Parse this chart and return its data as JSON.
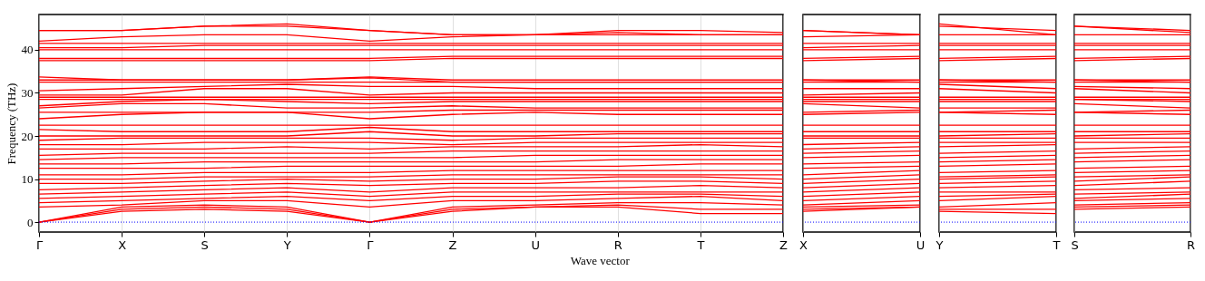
{
  "chart_data": [
    {
      "type": "line",
      "ylabel": "Frequency (THz)",
      "xlabel": "Wave vector",
      "grid": "x",
      "ylim": [
        -2.3,
        48.2
      ],
      "yticks": [
        0,
        10,
        20,
        30,
        40
      ],
      "categories": [
        "Γ",
        "X",
        "S",
        "Y",
        "Γ",
        "Z",
        "U",
        "R",
        "T",
        "Z"
      ],
      "ref_lines": [
        {
          "axis": "y",
          "value": 0,
          "color": "#0000ff",
          "line_style": "dotted"
        }
      ],
      "series": [
        {
          "color": "#ff0000",
          "values": [
            0,
            2.5,
            3,
            2.5,
            0,
            3,
            3.5,
            3.5,
            2,
            2
          ]
        },
        {
          "color": "#ff0000",
          "values": [
            0,
            3,
            3.5,
            3,
            0,
            2.5,
            3.5,
            4,
            3,
            3
          ]
        },
        {
          "color": "#ff0000",
          "values": [
            0,
            3.5,
            4,
            3.5,
            0,
            3.5,
            4,
            4.5,
            4.5,
            4
          ]
        },
        {
          "color": "#ff0000",
          "values": [
            3.5,
            4,
            5,
            5,
            3.5,
            5,
            5,
            5.5,
            6,
            5
          ]
        },
        {
          "color": "#ff0000",
          "values": [
            4.5,
            5,
            5.5,
            6,
            5,
            6,
            6,
            6.5,
            6.5,
            6
          ]
        },
        {
          "color": "#ff0000",
          "values": [
            5.5,
            6,
            6.5,
            7,
            6,
            7,
            7,
            7,
            7,
            7
          ]
        },
        {
          "color": "#ff0000",
          "values": [
            6.5,
            7,
            7.5,
            8,
            7,
            8,
            8,
            8,
            8.5,
            8
          ]
        },
        {
          "color": "#ff0000",
          "values": [
            7.5,
            8,
            8.5,
            9,
            8.5,
            9,
            9,
            9.5,
            9.5,
            9
          ]
        },
        {
          "color": "#ff0000",
          "values": [
            9,
            9,
            9.5,
            10,
            9.5,
            10,
            10,
            10.5,
            10.5,
            10
          ]
        },
        {
          "color": "#ff0000",
          "values": [
            10,
            10,
            10.5,
            10.5,
            10.5,
            11,
            11,
            11,
            11,
            11
          ]
        },
        {
          "color": "#ff0000",
          "values": [
            11,
            11,
            11.5,
            11.5,
            11.5,
            12,
            12,
            12,
            12,
            12
          ]
        },
        {
          "color": "#ff0000",
          "values": [
            12.5,
            12.5,
            12.5,
            13,
            13,
            13,
            13,
            13,
            13.5,
            13.5
          ]
        },
        {
          "color": "#ff0000",
          "values": [
            13.5,
            13.5,
            14,
            14,
            14,
            14,
            14,
            14.5,
            14.5,
            14.5
          ]
        },
        {
          "color": "#ff0000",
          "values": [
            14.5,
            15,
            15,
            15,
            15,
            15,
            15.5,
            15.5,
            15.5,
            15.5
          ]
        },
        {
          "color": "#ff0000",
          "values": [
            15.5,
            16,
            16,
            16,
            16,
            16.5,
            16.5,
            16.5,
            16.5,
            16.5
          ]
        },
        {
          "color": "#ff0000",
          "values": [
            17,
            17,
            17,
            17.5,
            17,
            17.5,
            17.5,
            17.5,
            18,
            17.5
          ]
        },
        {
          "color": "#ff0000",
          "values": [
            18,
            18,
            18.5,
            18.5,
            18.5,
            18,
            18.5,
            18.5,
            18.5,
            18.5
          ]
        },
        {
          "color": "#ff0000",
          "values": [
            19,
            19.5,
            19.5,
            19.5,
            19.5,
            19,
            19.5,
            19.5,
            19.5,
            19.5
          ]
        },
        {
          "color": "#ff0000",
          "values": [
            20,
            20,
            20,
            20,
            21,
            20,
            20,
            20.5,
            20.5,
            20.5
          ]
        },
        {
          "color": "#ff0000",
          "values": [
            21.5,
            21,
            21,
            21,
            22,
            21,
            21,
            21,
            21,
            21
          ]
        },
        {
          "color": "#ff0000",
          "values": [
            22.5,
            22.5,
            22.5,
            22.5,
            22.5,
            22.5,
            22.5,
            22.5,
            22.5,
            22.5
          ]
        },
        {
          "color": "#ff0000",
          "values": [
            24,
            25,
            25.5,
            25.5,
            24,
            25,
            25.5,
            25,
            25,
            25
          ]
        },
        {
          "color": "#ff0000",
          "values": [
            25.5,
            25.5,
            25.5,
            25.5,
            25.5,
            26,
            26,
            26,
            26,
            26
          ]
        },
        {
          "color": "#ff0000",
          "values": [
            26.5,
            27.5,
            27.5,
            26.5,
            26.5,
            27,
            26.5,
            26.5,
            26.5,
            26.5
          ]
        },
        {
          "color": "#ff0000",
          "values": [
            27,
            28,
            28.5,
            28,
            27.5,
            28,
            28,
            28,
            28,
            28
          ]
        },
        {
          "color": "#ff0000",
          "values": [
            28.5,
            28.5,
            28.5,
            28.5,
            28.5,
            28.5,
            28.5,
            28.5,
            28.5,
            28.5
          ]
        },
        {
          "color": "#ff0000",
          "values": [
            29,
            29,
            29,
            29,
            29,
            29,
            29,
            29,
            29,
            29
          ]
        },
        {
          "color": "#ff0000",
          "values": [
            29.5,
            29.5,
            31,
            31,
            29.5,
            30,
            30,
            30,
            30,
            30
          ]
        },
        {
          "color": "#ff0000",
          "values": [
            30.5,
            31,
            31.5,
            32,
            31.5,
            31.5,
            31,
            31,
            31,
            31
          ]
        },
        {
          "color": "#ff0000",
          "values": [
            32.5,
            32.5,
            32.5,
            32.5,
            32.5,
            32.5,
            32.5,
            32.5,
            32.5,
            32.5
          ]
        },
        {
          "color": "#ff0000",
          "values": [
            33,
            33,
            33,
            33,
            33.5,
            32.5,
            32.5,
            32.5,
            32.5,
            32.5
          ]
        },
        {
          "color": "#ff0000",
          "values": [
            33.7,
            33,
            33,
            33,
            33.7,
            33,
            33,
            33,
            33,
            33
          ]
        },
        {
          "color": "#ff0000",
          "values": [
            37.5,
            37.5,
            37.5,
            37.5,
            37.5,
            38,
            38,
            38,
            38,
            38
          ]
        },
        {
          "color": "#ff0000",
          "values": [
            38,
            38,
            38,
            38,
            38,
            38.5,
            38.5,
            38.5,
            38.5,
            38.5
          ]
        },
        {
          "color": "#ff0000",
          "values": [
            40,
            40,
            40,
            40,
            40,
            40,
            40,
            40,
            40,
            40
          ]
        },
        {
          "color": "#ff0000",
          "values": [
            40.5,
            40.5,
            41,
            41,
            41,
            41,
            41,
            41,
            41,
            41
          ]
        },
        {
          "color": "#ff0000",
          "values": [
            41.5,
            41.5,
            41.5,
            41.5,
            41.5,
            41.5,
            41.5,
            41.5,
            41.5,
            41.5
          ]
        },
        {
          "color": "#ff0000",
          "values": [
            42,
            43,
            43.5,
            43.5,
            42,
            43,
            43.5,
            43.5,
            43.5,
            43.5
          ]
        },
        {
          "color": "#ff0000",
          "values": [
            44.5,
            44.5,
            45.5,
            45.5,
            44.5,
            43.5,
            43.5,
            44.5,
            44.5,
            44
          ]
        },
        {
          "color": "#ff0000",
          "values": [
            44.5,
            44.5,
            45.5,
            46,
            44.5,
            43.5,
            43.5,
            44,
            43.5,
            43.5
          ]
        }
      ]
    },
    {
      "type": "line",
      "grid": "x",
      "tick_labels": "x",
      "ylim": [
        -2.3,
        48.2
      ],
      "yticks": [
        0,
        10,
        20,
        30,
        40
      ],
      "categories": [
        "X",
        "U"
      ],
      "ref_lines": [
        {
          "axis": "y",
          "value": 0,
          "color": "#0000ff",
          "line_style": "dotted"
        }
      ],
      "series": [
        {
          "color": "#ff0000",
          "values": [
            2.5,
            3.5
          ]
        },
        {
          "color": "#ff0000",
          "values": [
            3,
            3.5
          ]
        },
        {
          "color": "#ff0000",
          "values": [
            3.5,
            4
          ]
        },
        {
          "color": "#ff0000",
          "values": [
            4,
            5
          ]
        },
        {
          "color": "#ff0000",
          "values": [
            5,
            6
          ]
        },
        {
          "color": "#ff0000",
          "values": [
            6,
            7
          ]
        },
        {
          "color": "#ff0000",
          "values": [
            7,
            8
          ]
        },
        {
          "color": "#ff0000",
          "values": [
            8,
            9
          ]
        },
        {
          "color": "#ff0000",
          "values": [
            9,
            10
          ]
        },
        {
          "color": "#ff0000",
          "values": [
            10,
            11
          ]
        },
        {
          "color": "#ff0000",
          "values": [
            11,
            12
          ]
        },
        {
          "color": "#ff0000",
          "values": [
            12.5,
            13
          ]
        },
        {
          "color": "#ff0000",
          "values": [
            13.5,
            14
          ]
        },
        {
          "color": "#ff0000",
          "values": [
            15,
            15.5
          ]
        },
        {
          "color": "#ff0000",
          "values": [
            16,
            16.5
          ]
        },
        {
          "color": "#ff0000",
          "values": [
            17,
            17.5
          ]
        },
        {
          "color": "#ff0000",
          "values": [
            18,
            18.5
          ]
        },
        {
          "color": "#ff0000",
          "values": [
            19.5,
            19.5
          ]
        },
        {
          "color": "#ff0000",
          "values": [
            20,
            20
          ]
        },
        {
          "color": "#ff0000",
          "values": [
            21,
            21
          ]
        },
        {
          "color": "#ff0000",
          "values": [
            22.5,
            22.5
          ]
        },
        {
          "color": "#ff0000",
          "values": [
            25,
            25.5
          ]
        },
        {
          "color": "#ff0000",
          "values": [
            25.5,
            26
          ]
        },
        {
          "color": "#ff0000",
          "values": [
            27.5,
            26.5
          ]
        },
        {
          "color": "#ff0000",
          "values": [
            28,
            28
          ]
        },
        {
          "color": "#ff0000",
          "values": [
            28.5,
            28.5
          ]
        },
        {
          "color": "#ff0000",
          "values": [
            29,
            29
          ]
        },
        {
          "color": "#ff0000",
          "values": [
            29.5,
            30
          ]
        },
        {
          "color": "#ff0000",
          "values": [
            31,
            31
          ]
        },
        {
          "color": "#ff0000",
          "values": [
            32.5,
            32.5
          ]
        },
        {
          "color": "#ff0000",
          "values": [
            33,
            32.5
          ]
        },
        {
          "color": "#ff0000",
          "values": [
            33,
            33
          ]
        },
        {
          "color": "#ff0000",
          "values": [
            37.5,
            38
          ]
        },
        {
          "color": "#ff0000",
          "values": [
            38,
            38.5
          ]
        },
        {
          "color": "#ff0000",
          "values": [
            40,
            40
          ]
        },
        {
          "color": "#ff0000",
          "values": [
            40.5,
            41
          ]
        },
        {
          "color": "#ff0000",
          "values": [
            41.5,
            41.5
          ]
        },
        {
          "color": "#ff0000",
          "values": [
            43,
            43.5
          ]
        },
        {
          "color": "#ff0000",
          "values": [
            44.5,
            43.5
          ]
        },
        {
          "color": "#ff0000",
          "values": [
            44.5,
            43.5
          ]
        }
      ]
    },
    {
      "type": "line",
      "grid": "x",
      "tick_labels": "x",
      "ylim": [
        -2.3,
        48.2
      ],
      "yticks": [
        0,
        10,
        20,
        30,
        40
      ],
      "categories": [
        "Y",
        "T"
      ],
      "ref_lines": [
        {
          "axis": "y",
          "value": 0,
          "color": "#0000ff",
          "line_style": "dotted"
        }
      ],
      "series": [
        {
          "color": "#ff0000",
          "values": [
            2.5,
            2
          ]
        },
        {
          "color": "#ff0000",
          "values": [
            3,
            3
          ]
        },
        {
          "color": "#ff0000",
          "values": [
            3.5,
            4.5
          ]
        },
        {
          "color": "#ff0000",
          "values": [
            5,
            6
          ]
        },
        {
          "color": "#ff0000",
          "values": [
            6,
            6.5
          ]
        },
        {
          "color": "#ff0000",
          "values": [
            7,
            7
          ]
        },
        {
          "color": "#ff0000",
          "values": [
            8,
            8.5
          ]
        },
        {
          "color": "#ff0000",
          "values": [
            9,
            9.5
          ]
        },
        {
          "color": "#ff0000",
          "values": [
            10,
            10.5
          ]
        },
        {
          "color": "#ff0000",
          "values": [
            10.5,
            11
          ]
        },
        {
          "color": "#ff0000",
          "values": [
            11.5,
            12
          ]
        },
        {
          "color": "#ff0000",
          "values": [
            13,
            13.5
          ]
        },
        {
          "color": "#ff0000",
          "values": [
            14,
            14.5
          ]
        },
        {
          "color": "#ff0000",
          "values": [
            15,
            15.5
          ]
        },
        {
          "color": "#ff0000",
          "values": [
            16,
            16.5
          ]
        },
        {
          "color": "#ff0000",
          "values": [
            17.5,
            18
          ]
        },
        {
          "color": "#ff0000",
          "values": [
            18.5,
            18.5
          ]
        },
        {
          "color": "#ff0000",
          "values": [
            19.5,
            19.5
          ]
        },
        {
          "color": "#ff0000",
          "values": [
            20,
            20.5
          ]
        },
        {
          "color": "#ff0000",
          "values": [
            21,
            21
          ]
        },
        {
          "color": "#ff0000",
          "values": [
            22.5,
            22.5
          ]
        },
        {
          "color": "#ff0000",
          "values": [
            25.5,
            25
          ]
        },
        {
          "color": "#ff0000",
          "values": [
            25.5,
            26
          ]
        },
        {
          "color": "#ff0000",
          "values": [
            26.5,
            26.5
          ]
        },
        {
          "color": "#ff0000",
          "values": [
            28,
            28
          ]
        },
        {
          "color": "#ff0000",
          "values": [
            28.5,
            28.5
          ]
        },
        {
          "color": "#ff0000",
          "values": [
            29,
            29
          ]
        },
        {
          "color": "#ff0000",
          "values": [
            31,
            30
          ]
        },
        {
          "color": "#ff0000",
          "values": [
            32,
            31
          ]
        },
        {
          "color": "#ff0000",
          "values": [
            32.5,
            32.5
          ]
        },
        {
          "color": "#ff0000",
          "values": [
            33,
            32.5
          ]
        },
        {
          "color": "#ff0000",
          "values": [
            33,
            33
          ]
        },
        {
          "color": "#ff0000",
          "values": [
            37.5,
            38
          ]
        },
        {
          "color": "#ff0000",
          "values": [
            38,
            38.5
          ]
        },
        {
          "color": "#ff0000",
          "values": [
            40,
            40
          ]
        },
        {
          "color": "#ff0000",
          "values": [
            41,
            41
          ]
        },
        {
          "color": "#ff0000",
          "values": [
            41.5,
            41.5
          ]
        },
        {
          "color": "#ff0000",
          "values": [
            43.5,
            43.5
          ]
        },
        {
          "color": "#ff0000",
          "values": [
            45.5,
            44.5
          ]
        },
        {
          "color": "#ff0000",
          "values": [
            46,
            43.5
          ]
        }
      ]
    },
    {
      "type": "line",
      "grid": "x",
      "tick_labels": "x",
      "ylim": [
        -2.3,
        48.2
      ],
      "yticks": [
        0,
        10,
        20,
        30,
        40
      ],
      "categories": [
        "S",
        "R"
      ],
      "ref_lines": [
        {
          "axis": "y",
          "value": 0,
          "color": "#0000ff",
          "line_style": "dotted"
        }
      ],
      "series": [
        {
          "color": "#ff0000",
          "values": [
            3,
            3.5
          ]
        },
        {
          "color": "#ff0000",
          "values": [
            3.5,
            4
          ]
        },
        {
          "color": "#ff0000",
          "values": [
            4,
            4.5
          ]
        },
        {
          "color": "#ff0000",
          "values": [
            5,
            5.5
          ]
        },
        {
          "color": "#ff0000",
          "values": [
            5.5,
            6.5
          ]
        },
        {
          "color": "#ff0000",
          "values": [
            6.5,
            7
          ]
        },
        {
          "color": "#ff0000",
          "values": [
            7.5,
            8
          ]
        },
        {
          "color": "#ff0000",
          "values": [
            8.5,
            9.5
          ]
        },
        {
          "color": "#ff0000",
          "values": [
            9.5,
            10.5
          ]
        },
        {
          "color": "#ff0000",
          "values": [
            10.5,
            11
          ]
        },
        {
          "color": "#ff0000",
          "values": [
            11.5,
            12
          ]
        },
        {
          "color": "#ff0000",
          "values": [
            12.5,
            13
          ]
        },
        {
          "color": "#ff0000",
          "values": [
            14,
            14.5
          ]
        },
        {
          "color": "#ff0000",
          "values": [
            15,
            15.5
          ]
        },
        {
          "color": "#ff0000",
          "values": [
            16,
            16.5
          ]
        },
        {
          "color": "#ff0000",
          "values": [
            17,
            17.5
          ]
        },
        {
          "color": "#ff0000",
          "values": [
            18.5,
            18.5
          ]
        },
        {
          "color": "#ff0000",
          "values": [
            19.5,
            19.5
          ]
        },
        {
          "color": "#ff0000",
          "values": [
            20,
            20.5
          ]
        },
        {
          "color": "#ff0000",
          "values": [
            21,
            21
          ]
        },
        {
          "color": "#ff0000",
          "values": [
            22.5,
            22.5
          ]
        },
        {
          "color": "#ff0000",
          "values": [
            25.5,
            25
          ]
        },
        {
          "color": "#ff0000",
          "values": [
            25.5,
            26
          ]
        },
        {
          "color": "#ff0000",
          "values": [
            27.5,
            26.5
          ]
        },
        {
          "color": "#ff0000",
          "values": [
            28.5,
            28
          ]
        },
        {
          "color": "#ff0000",
          "values": [
            28.5,
            28.5
          ]
        },
        {
          "color": "#ff0000",
          "values": [
            29,
            29
          ]
        },
        {
          "color": "#ff0000",
          "values": [
            31,
            30
          ]
        },
        {
          "color": "#ff0000",
          "values": [
            31.5,
            31
          ]
        },
        {
          "color": "#ff0000",
          "values": [
            32.5,
            32.5
          ]
        },
        {
          "color": "#ff0000",
          "values": [
            33,
            32.5
          ]
        },
        {
          "color": "#ff0000",
          "values": [
            33,
            33
          ]
        },
        {
          "color": "#ff0000",
          "values": [
            37.5,
            38
          ]
        },
        {
          "color": "#ff0000",
          "values": [
            38,
            38.5
          ]
        },
        {
          "color": "#ff0000",
          "values": [
            40,
            40
          ]
        },
        {
          "color": "#ff0000",
          "values": [
            41,
            41
          ]
        },
        {
          "color": "#ff0000",
          "values": [
            41.5,
            41.5
          ]
        },
        {
          "color": "#ff0000",
          "values": [
            43.5,
            43.5
          ]
        },
        {
          "color": "#ff0000",
          "values": [
            45.5,
            44.5
          ]
        },
        {
          "color": "#ff0000",
          "values": [
            45.5,
            44
          ]
        }
      ]
    }
  ]
}
